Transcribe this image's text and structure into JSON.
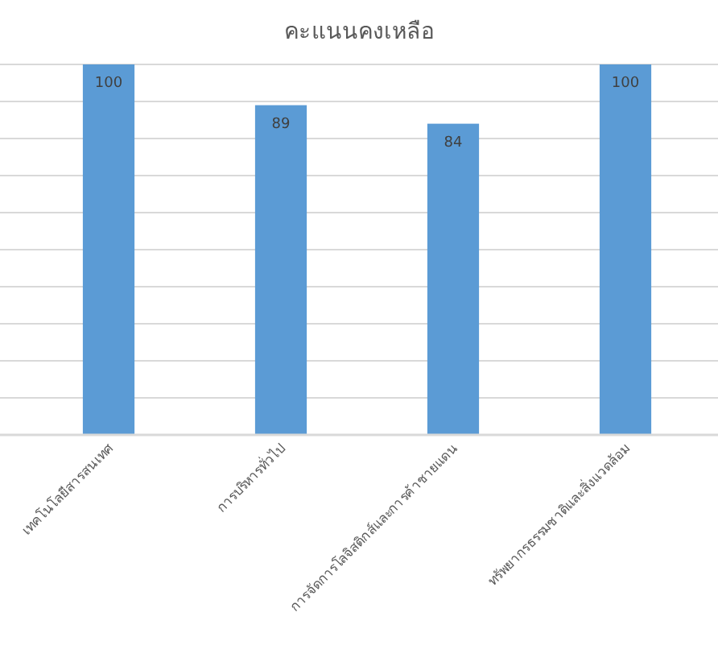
{
  "chart_data": {
    "type": "bar",
    "title": "คะแนนคงเหลือ",
    "categories": [
      "เทคโนโลยีสารสนเทศ",
      "การบริหารทั่วไป",
      "การจัดการโลจิสติกส์และการค้าชายแดน",
      "ทรัพยากรธรรมชาติและสิ่งแวดล้อม"
    ],
    "values": [
      100,
      89,
      84,
      100
    ],
    "color": "#5b9bd5",
    "ylim": [
      0,
      100
    ],
    "yticks": [
      {
        "value": 0,
        "label": null
      },
      {
        "value": 10,
        "label": null
      },
      {
        "value": 20,
        "label": null
      },
      {
        "value": 30,
        "label": null
      },
      {
        "value": 40,
        "label": null
      },
      {
        "value": 50,
        "label": null
      },
      {
        "value": 60,
        "label": null
      },
      {
        "value": 70,
        "label": null
      },
      {
        "value": 80,
        "label": null
      },
      {
        "value": 90,
        "label": null
      },
      {
        "value": 100,
        "label": null
      }
    ],
    "grid": "y",
    "tick_labels": "x",
    "data_labels": true
  }
}
